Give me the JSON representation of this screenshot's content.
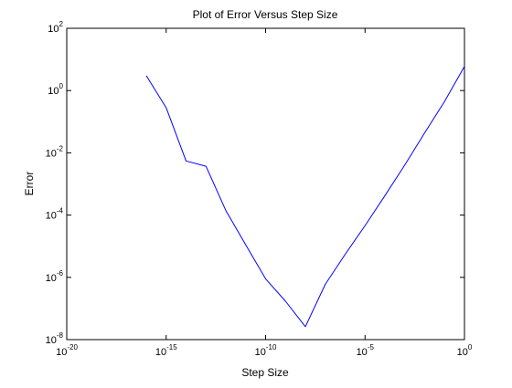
{
  "chart_data": {
    "type": "line",
    "title": "Plot of Error Versus Step Size",
    "xlabel": "Step Size",
    "ylabel": "Error",
    "xscale": "log",
    "yscale": "log",
    "xlim": [
      1e-20,
      1
    ],
    "ylim": [
      1e-08,
      100
    ],
    "grid": false,
    "legend": "none",
    "x_ticks": [
      {
        "value": 1e-20,
        "base": "10",
        "exp": "-20"
      },
      {
        "value": 1e-15,
        "base": "10",
        "exp": "-15"
      },
      {
        "value": 1e-10,
        "base": "10",
        "exp": "-10"
      },
      {
        "value": 1e-05,
        "base": "10",
        "exp": "-5"
      },
      {
        "value": 1,
        "base": "10",
        "exp": "0"
      }
    ],
    "y_ticks": [
      {
        "value": 1e-08,
        "base": "10",
        "exp": "-8"
      },
      {
        "value": 1e-06,
        "base": "10",
        "exp": "-6"
      },
      {
        "value": 0.0001,
        "base": "10",
        "exp": "-4"
      },
      {
        "value": 0.01,
        "base": "10",
        "exp": "-2"
      },
      {
        "value": 1,
        "base": "10",
        "exp": "0"
      },
      {
        "value": 100,
        "base": "10",
        "exp": "2"
      }
    ],
    "series": [
      {
        "color": "#0000ff",
        "x": [
          1e-16,
          1e-15,
          1e-14,
          1e-13,
          1e-12,
          1e-11,
          1e-10,
          1e-09,
          1e-08,
          1e-07,
          1e-06,
          1e-05,
          0.0001,
          0.001,
          0.01,
          0.1,
          1
        ],
        "y": [
          3.0,
          0.28,
          0.0055,
          0.0037,
          0.00014,
          1.1e-05,
          9e-07,
          1.7e-07,
          2.6e-08,
          6e-07,
          5.5e-06,
          4.6e-05,
          0.00042,
          0.0041,
          0.044,
          0.45,
          6.0
        ]
      }
    ]
  }
}
